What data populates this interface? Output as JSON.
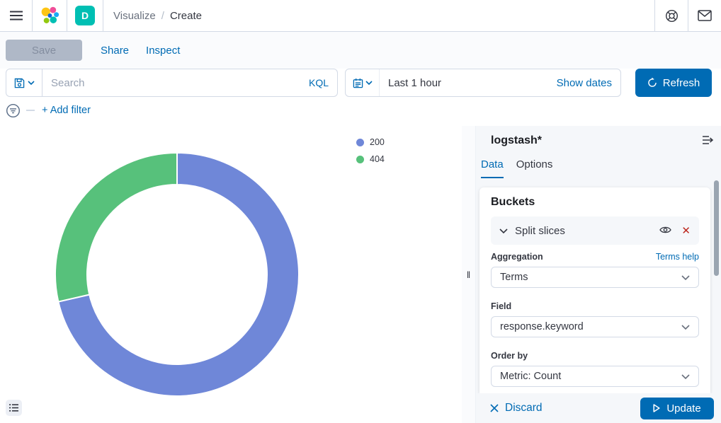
{
  "header": {
    "breadcrumb_section": "Visualize",
    "breadcrumb_separator": "/",
    "breadcrumb_current": "Create",
    "space_initial": "D"
  },
  "toolbar": {
    "save": "Save",
    "share": "Share",
    "inspect": "Inspect"
  },
  "query_bar": {
    "search_placeholder": "Search",
    "language": "KQL",
    "time_range": "Last 1 hour",
    "show_dates": "Show dates",
    "refresh": "Refresh"
  },
  "filter_bar": {
    "add_filter": "+ Add filter"
  },
  "chart_data": {
    "type": "pie",
    "donut": true,
    "title": "",
    "categories": [
      "200",
      "404"
    ],
    "values_percent": [
      71.4,
      28.6
    ],
    "colors": [
      "#6F87D8",
      "#57C17B"
    ],
    "start_angle_deg": 0,
    "clockwise": true,
    "inner_radius_ratio": 0.74,
    "legend_position": "top-right"
  },
  "side_panel": {
    "title": "logstash*",
    "tabs": [
      {
        "label": "Data",
        "active": true
      },
      {
        "label": "Options",
        "active": false
      }
    ],
    "buckets": {
      "heading": "Buckets",
      "agg_row_label": "Split slices",
      "terms_help": "Terms help",
      "fields": [
        {
          "label": "Aggregation",
          "value": "Terms"
        },
        {
          "label": "Field",
          "value": "response.keyword"
        },
        {
          "label": "Order by",
          "value": "Metric: Count"
        }
      ]
    },
    "footer": {
      "discard": "Discard",
      "update": "Update"
    }
  },
  "colors": {
    "primary": "#006BB4",
    "danger": "#BD271E",
    "space_avatar": "#00BFB3",
    "slice_200": "#6F87D8",
    "slice_404": "#57C17B"
  }
}
